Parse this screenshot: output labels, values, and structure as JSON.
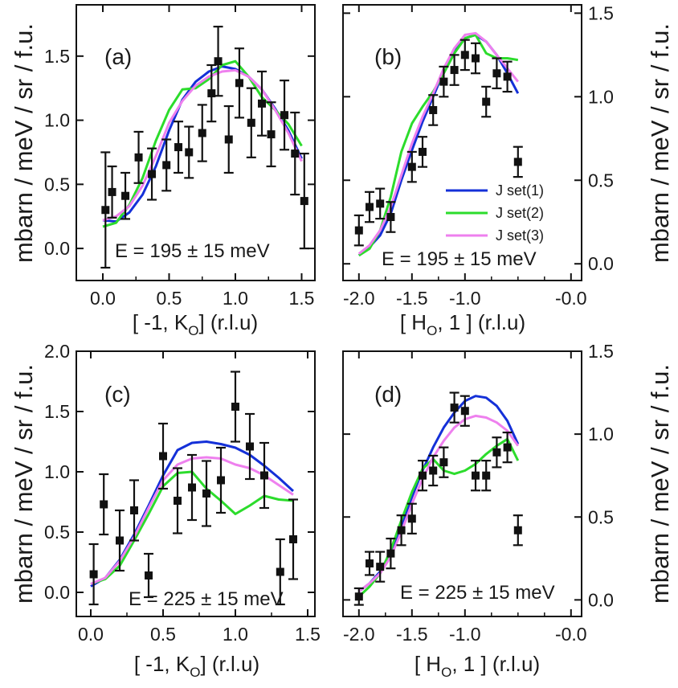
{
  "chart_data": [
    {
      "panel": "(a)",
      "type": "line+scatter",
      "energy_label": "E = 195 ± 15 meV",
      "xlabel": "[ -1, K",
      "xlabel_sub": "O",
      "xlabel_tail": "] (r.l.u)",
      "ylabel": "mbarn / meV / sr / f.u.",
      "xlim": [
        -0.2,
        1.6
      ],
      "ylim": [
        -0.25,
        1.9
      ],
      "xticks": [
        0.0,
        0.5,
        1.0,
        1.5
      ],
      "xtick_labels": [
        "0.0",
        "0.5",
        "1.0",
        "1.5"
      ],
      "yticks": [
        0.0,
        0.5,
        1.0,
        1.5
      ],
      "ytick_labels": [
        "0.0",
        "0.5",
        "1.0",
        "1.5"
      ],
      "points": [
        {
          "x": 0.02,
          "y": 0.3,
          "err": 0.45
        },
        {
          "x": 0.07,
          "y": 0.44,
          "err": 0.2
        },
        {
          "x": 0.17,
          "y": 0.41,
          "err": 0.18
        },
        {
          "x": 0.27,
          "y": 0.71,
          "err": 0.2
        },
        {
          "x": 0.37,
          "y": 0.58,
          "err": 0.2
        },
        {
          "x": 0.48,
          "y": 0.65,
          "err": 0.2
        },
        {
          "x": 0.57,
          "y": 0.79,
          "err": 0.2
        },
        {
          "x": 0.65,
          "y": 0.75,
          "err": 0.2
        },
        {
          "x": 0.75,
          "y": 0.9,
          "err": 0.22
        },
        {
          "x": 0.82,
          "y": 1.21,
          "err": 0.22
        },
        {
          "x": 0.87,
          "y": 1.46,
          "err": 0.27
        },
        {
          "x": 0.95,
          "y": 0.85,
          "err": 0.26
        },
        {
          "x": 1.03,
          "y": 1.29,
          "err": 0.27
        },
        {
          "x": 1.12,
          "y": 0.98,
          "err": 0.27
        },
        {
          "x": 1.2,
          "y": 1.13,
          "err": 0.25
        },
        {
          "x": 1.27,
          "y": 0.89,
          "err": 0.25
        },
        {
          "x": 1.37,
          "y": 1.04,
          "err": 0.27
        },
        {
          "x": 1.45,
          "y": 0.74,
          "err": 0.32
        },
        {
          "x": 1.52,
          "y": 0.37,
          "err": 0.37
        }
      ],
      "series": [
        {
          "name": "J set(1)",
          "x": [
            0.0,
            0.1,
            0.2,
            0.3,
            0.4,
            0.5,
            0.6,
            0.7,
            0.8,
            0.9,
            1.0,
            1.1,
            1.2,
            1.3,
            1.4,
            1.5
          ],
          "y": [
            0.22,
            0.21,
            0.28,
            0.42,
            0.64,
            0.92,
            1.16,
            1.3,
            1.38,
            1.42,
            1.4,
            1.34,
            1.24,
            1.09,
            0.92,
            0.7
          ]
        },
        {
          "name": "J set(2)",
          "x": [
            0.0,
            0.1,
            0.2,
            0.3,
            0.4,
            0.5,
            0.6,
            0.7,
            0.8,
            0.9,
            1.0,
            1.1,
            1.2,
            1.3,
            1.4,
            1.5
          ],
          "y": [
            0.17,
            0.2,
            0.34,
            0.55,
            0.84,
            1.08,
            1.24,
            1.25,
            1.32,
            1.43,
            1.46,
            1.34,
            1.18,
            1.08,
            0.97,
            0.8
          ]
        },
        {
          "name": "J set(3)",
          "x": [
            0.0,
            0.1,
            0.2,
            0.3,
            0.4,
            0.5,
            0.6,
            0.7,
            0.8,
            0.9,
            1.0,
            1.1,
            1.2,
            1.3,
            1.4,
            1.5
          ],
          "y": [
            0.22,
            0.25,
            0.33,
            0.49,
            0.72,
            0.98,
            1.15,
            1.27,
            1.34,
            1.38,
            1.39,
            1.34,
            1.24,
            1.08,
            0.9,
            0.68
          ]
        }
      ]
    },
    {
      "panel": "(b)",
      "type": "line+scatter",
      "energy_label": "E = 195 ± 15 meV",
      "xlabel": "[ H",
      "xlabel_sub": "O",
      "xlabel_tail": ", 1 ] (r.l.u)",
      "ylabel": "mbarn / meV / sr / f.u.",
      "xlim": [
        -2.15,
        0.1
      ],
      "ylim": [
        -0.1,
        1.55
      ],
      "xticks": [
        -2.0,
        -1.5,
        -1.0,
        0.0
      ],
      "xtick_labels": [
        "-2.0",
        "-1.5",
        "-1.0",
        "-0.0"
      ],
      "yticks": [
        0.0,
        0.5,
        1.0,
        1.5
      ],
      "ytick_labels": [
        "0.0",
        "0.5",
        "1.0",
        "1.5"
      ],
      "points": [
        {
          "x": -2.0,
          "y": 0.2,
          "err": 0.09
        },
        {
          "x": -1.9,
          "y": 0.34,
          "err": 0.09
        },
        {
          "x": -1.8,
          "y": 0.36,
          "err": 0.09
        },
        {
          "x": -1.7,
          "y": 0.28,
          "err": 0.09
        },
        {
          "x": -1.5,
          "y": 0.58,
          "err": 0.09
        },
        {
          "x": -1.4,
          "y": 0.67,
          "err": 0.09
        },
        {
          "x": -1.3,
          "y": 0.92,
          "err": 0.09
        },
        {
          "x": -1.2,
          "y": 1.09,
          "err": 0.09
        },
        {
          "x": -1.1,
          "y": 1.16,
          "err": 0.09
        },
        {
          "x": -1.0,
          "y": 1.25,
          "err": 0.09
        },
        {
          "x": -0.9,
          "y": 1.23,
          "err": 0.09
        },
        {
          "x": -0.8,
          "y": 0.97,
          "err": 0.09
        },
        {
          "x": -0.7,
          "y": 1.14,
          "err": 0.09
        },
        {
          "x": -0.6,
          "y": 1.12,
          "err": 0.09
        },
        {
          "x": -0.5,
          "y": 0.61,
          "err": 0.09
        }
      ],
      "series": [
        {
          "name": "J set(1)",
          "x": [
            -2.0,
            -1.9,
            -1.8,
            -1.7,
            -1.6,
            -1.5,
            -1.4,
            -1.3,
            -1.2,
            -1.1,
            -1.0,
            -0.9,
            -0.8,
            -0.7,
            -0.6,
            -0.5
          ],
          "y": [
            0.05,
            0.1,
            0.17,
            0.3,
            0.5,
            0.68,
            0.85,
            1.0,
            1.15,
            1.27,
            1.35,
            1.37,
            1.33,
            1.25,
            1.14,
            1.02
          ]
        },
        {
          "name": "J set(2)",
          "x": [
            -2.0,
            -1.9,
            -1.8,
            -1.7,
            -1.6,
            -1.5,
            -1.4,
            -1.3,
            -1.2,
            -1.1,
            -1.0,
            -0.9,
            -0.8,
            -0.7,
            -0.6,
            -0.5
          ],
          "y": [
            0.05,
            0.09,
            0.2,
            0.4,
            0.67,
            0.84,
            0.94,
            1.03,
            1.14,
            1.26,
            1.35,
            1.37,
            1.26,
            1.23,
            1.23,
            1.22
          ]
        },
        {
          "name": "J set(3)",
          "x": [
            -2.0,
            -1.9,
            -1.8,
            -1.7,
            -1.6,
            -1.5,
            -1.4,
            -1.3,
            -1.2,
            -1.1,
            -1.0,
            -0.9,
            -0.8,
            -0.7,
            -0.6,
            -0.5
          ],
          "y": [
            0.06,
            0.11,
            0.2,
            0.34,
            0.53,
            0.72,
            0.88,
            1.02,
            1.17,
            1.29,
            1.37,
            1.38,
            1.33,
            1.25,
            1.17,
            1.09
          ]
        }
      ],
      "legend": [
        "J set(1)",
        "J set(2)",
        "J set(3)"
      ],
      "legend_position": "lower-right"
    },
    {
      "panel": "(c)",
      "type": "line+scatter",
      "energy_label": "E = 225 ± 15 meV",
      "xlabel": "[ -1, K",
      "xlabel_sub": "O",
      "xlabel_tail": "] (r.l.u)",
      "ylabel": "mbarn / meV / sr / f.u.",
      "xlim": [
        -0.1,
        1.55
      ],
      "ylim": [
        -0.2,
        2.0
      ],
      "xticks": [
        0.0,
        0.5,
        1.0,
        1.5
      ],
      "xtick_labels": [
        "0.0",
        "0.5",
        "1.0",
        "1.5"
      ],
      "yticks": [
        0.0,
        0.5,
        1.0,
        1.5,
        2.0
      ],
      "ytick_labels": [
        "0.0",
        "0.5",
        "1.0",
        "1.5",
        "2.0"
      ],
      "points": [
        {
          "x": 0.02,
          "y": 0.15,
          "err": 0.25
        },
        {
          "x": 0.09,
          "y": 0.73,
          "err": 0.25
        },
        {
          "x": 0.2,
          "y": 0.43,
          "err": 0.25
        },
        {
          "x": 0.3,
          "y": 0.68,
          "err": 0.25
        },
        {
          "x": 0.4,
          "y": 0.14,
          "err": 0.18
        },
        {
          "x": 0.5,
          "y": 1.13,
          "err": 0.27
        },
        {
          "x": 0.6,
          "y": 0.76,
          "err": 0.27
        },
        {
          "x": 0.7,
          "y": 0.87,
          "err": 0.27
        },
        {
          "x": 0.8,
          "y": 0.82,
          "err": 0.27
        },
        {
          "x": 0.9,
          "y": 0.93,
          "err": 0.27
        },
        {
          "x": 1.0,
          "y": 1.54,
          "err": 0.29
        },
        {
          "x": 1.1,
          "y": 1.21,
          "err": 0.27
        },
        {
          "x": 1.2,
          "y": 0.97,
          "err": 0.27
        },
        {
          "x": 1.31,
          "y": 0.17,
          "err": 0.27
        },
        {
          "x": 1.4,
          "y": 0.44,
          "err": 0.33
        }
      ],
      "series": [
        {
          "name": "J set(1)",
          "x": [
            0.0,
            0.1,
            0.2,
            0.3,
            0.4,
            0.5,
            0.6,
            0.7,
            0.8,
            0.9,
            1.0,
            1.1,
            1.2,
            1.3,
            1.4
          ],
          "y": [
            0.05,
            0.12,
            0.27,
            0.48,
            0.72,
            0.97,
            1.18,
            1.24,
            1.25,
            1.23,
            1.2,
            1.14,
            1.05,
            0.95,
            0.84
          ]
        },
        {
          "name": "J set(2)",
          "x": [
            0.0,
            0.1,
            0.2,
            0.3,
            0.4,
            0.5,
            0.6,
            0.7,
            0.8,
            0.9,
            1.0,
            1.1,
            1.2,
            1.3,
            1.4
          ],
          "y": [
            0.07,
            0.11,
            0.22,
            0.43,
            0.65,
            0.88,
            0.99,
            1.0,
            0.86,
            0.76,
            0.65,
            0.72,
            0.8,
            0.77,
            0.76
          ]
        },
        {
          "name": "J set(3)",
          "x": [
            0.0,
            0.1,
            0.2,
            0.3,
            0.4,
            0.5,
            0.6,
            0.7,
            0.8,
            0.9,
            1.0,
            1.1,
            1.2,
            1.3,
            1.4
          ],
          "y": [
            0.07,
            0.12,
            0.26,
            0.46,
            0.7,
            0.93,
            1.06,
            1.11,
            1.12,
            1.11,
            1.06,
            1.03,
            0.97,
            0.89,
            0.81
          ]
        }
      ]
    },
    {
      "panel": "(d)",
      "type": "line+scatter",
      "energy_label": "E = 225 ± 15 meV",
      "xlabel": "[ H",
      "xlabel_sub": "O",
      "xlabel_tail": ", 1 ] (r.l.u)",
      "ylabel": "mbarn / meV / sr / f.u.",
      "xlim": [
        -2.15,
        0.1
      ],
      "ylim": [
        -0.1,
        1.5
      ],
      "xticks": [
        -2.0,
        -1.5,
        -1.0,
        0.0
      ],
      "xtick_labels": [
        "-2.0",
        "-1.5",
        "-1.0",
        "-0.0"
      ],
      "yticks": [
        0.0,
        0.5,
        1.0,
        1.5
      ],
      "ytick_labels": [
        "0.0",
        "0.5",
        "1.0",
        "1.5"
      ],
      "points": [
        {
          "x": -2.0,
          "y": 0.02,
          "err": 0.05
        },
        {
          "x": -1.9,
          "y": 0.22,
          "err": 0.07
        },
        {
          "x": -1.8,
          "y": 0.2,
          "err": 0.09
        },
        {
          "x": -1.7,
          "y": 0.28,
          "err": 0.09
        },
        {
          "x": -1.6,
          "y": 0.42,
          "err": 0.09
        },
        {
          "x": -1.5,
          "y": 0.49,
          "err": 0.09
        },
        {
          "x": -1.4,
          "y": 0.75,
          "err": 0.09
        },
        {
          "x": -1.3,
          "y": 0.78,
          "err": 0.09
        },
        {
          "x": -1.2,
          "y": 0.83,
          "err": 0.09
        },
        {
          "x": -1.1,
          "y": 1.16,
          "err": 0.09
        },
        {
          "x": -1.0,
          "y": 1.14,
          "err": 0.09
        },
        {
          "x": -0.9,
          "y": 0.75,
          "err": 0.09
        },
        {
          "x": -0.8,
          "y": 0.75,
          "err": 0.09
        },
        {
          "x": -0.7,
          "y": 0.89,
          "err": 0.09
        },
        {
          "x": -0.6,
          "y": 0.92,
          "err": 0.09
        },
        {
          "x": -0.5,
          "y": 0.42,
          "err": 0.09
        }
      ],
      "series": [
        {
          "name": "J set(1)",
          "x": [
            -2.0,
            -1.9,
            -1.8,
            -1.7,
            -1.6,
            -1.5,
            -1.4,
            -1.3,
            -1.2,
            -1.1,
            -1.0,
            -0.9,
            -0.8,
            -0.7,
            -0.6,
            -0.5
          ],
          "y": [
            0.05,
            0.1,
            0.17,
            0.29,
            0.45,
            0.62,
            0.78,
            0.92,
            1.04,
            1.13,
            1.2,
            1.23,
            1.22,
            1.17,
            1.08,
            0.94
          ]
        },
        {
          "name": "J set(2)",
          "x": [
            -2.0,
            -1.9,
            -1.8,
            -1.7,
            -1.6,
            -1.5,
            -1.4,
            -1.3,
            -1.2,
            -1.1,
            -1.0,
            -0.9,
            -0.8,
            -0.7,
            -0.6,
            -0.5
          ],
          "y": [
            0.02,
            0.08,
            0.16,
            0.3,
            0.48,
            0.65,
            0.79,
            0.85,
            0.78,
            0.76,
            0.78,
            0.82,
            0.88,
            0.93,
            0.97,
            0.84
          ]
        },
        {
          "name": "J set(3)",
          "x": [
            -2.0,
            -1.9,
            -1.8,
            -1.7,
            -1.6,
            -1.5,
            -1.4,
            -1.3,
            -1.2,
            -1.1,
            -1.0,
            -0.9,
            -0.8,
            -0.7,
            -0.6,
            -0.5
          ],
          "y": [
            0.05,
            0.1,
            0.16,
            0.26,
            0.41,
            0.58,
            0.73,
            0.86,
            0.96,
            1.04,
            1.09,
            1.11,
            1.1,
            1.07,
            1.02,
            0.93
          ]
        }
      ]
    }
  ],
  "series_colors": {
    "J set(1)": "#1430d8",
    "J set(2)": "#2cdc2c",
    "J set(3)": "#ee80ee"
  },
  "point_color": "#111111"
}
